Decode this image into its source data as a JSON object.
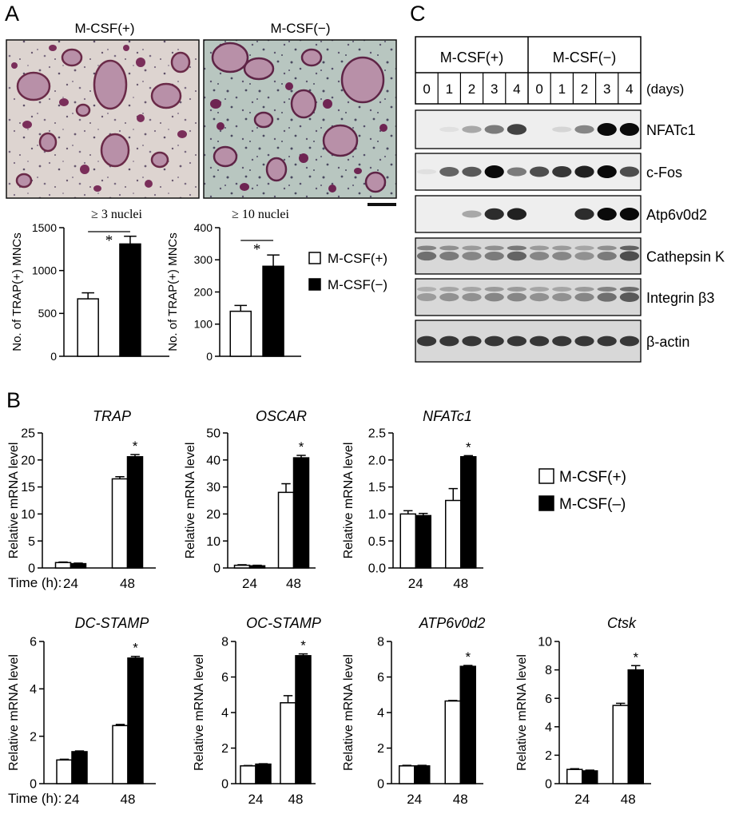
{
  "panels": {
    "A": "A",
    "B": "B",
    "C": "C"
  },
  "micro": {
    "left_label": "M-CSF(+)",
    "right_label": "M-CSF(−)"
  },
  "legend": {
    "open": "M-CSF(+)",
    "filled_a": "M-CSF(−)",
    "filled_b": "M-CSF(–)"
  },
  "blot": {
    "groups": [
      "M-CSF(+)",
      "M-CSF(−)"
    ],
    "days": [
      "0",
      "1",
      "2",
      "3",
      "4",
      "0",
      "1",
      "2",
      "3",
      "4"
    ],
    "days_unit": "(days)",
    "rows": [
      {
        "label": "NFATc1",
        "intensity": [
          0.0,
          0.05,
          0.3,
          0.5,
          0.75,
          0.0,
          0.1,
          0.45,
          1.0,
          1.0
        ]
      },
      {
        "label": "c-Fos",
        "intensity": [
          0.05,
          0.6,
          0.65,
          1.0,
          0.5,
          0.7,
          0.8,
          0.9,
          1.0,
          0.7
        ]
      },
      {
        "label": "Atp6v0d2",
        "intensity": [
          0.0,
          0.0,
          0.3,
          0.85,
          0.9,
          0.0,
          0.0,
          0.85,
          1.0,
          1.0
        ]
      },
      {
        "label": "Cathepsin K",
        "intensity": [
          0.55,
          0.5,
          0.45,
          0.5,
          0.6,
          0.45,
          0.45,
          0.4,
          0.5,
          0.7
        ]
      },
      {
        "label": "Integrin β3",
        "intensity": [
          0.35,
          0.4,
          0.4,
          0.45,
          0.45,
          0.4,
          0.4,
          0.45,
          0.55,
          0.65
        ]
      },
      {
        "label": "β-actin",
        "intensity": [
          0.8,
          0.8,
          0.8,
          0.8,
          0.8,
          0.8,
          0.8,
          0.8,
          0.8,
          0.8
        ]
      }
    ]
  },
  "chart_data": [
    {
      "type": "bar",
      "id": "a1",
      "title": "≥ 3 nuclei",
      "ylabel": "No. of TRAP(+) MNCs",
      "ylim": [
        0,
        1500
      ],
      "yticks": [
        0,
        500,
        1000,
        1500
      ],
      "series": [
        {
          "name": "M-CSF(+)",
          "values": [
            670
          ],
          "errors": [
            70
          ]
        },
        {
          "name": "M-CSF(−)",
          "values": [
            1310
          ],
          "errors": [
            90
          ]
        }
      ],
      "annotations": [
        "*"
      ]
    },
    {
      "type": "bar",
      "id": "a2",
      "title": "≥ 10 nuclei",
      "ylabel": "No. of TRAP(+) MNCs",
      "ylim": [
        0,
        400
      ],
      "yticks": [
        0,
        100,
        200,
        300,
        400
      ],
      "series": [
        {
          "name": "M-CSF(+)",
          "values": [
            140
          ],
          "errors": [
            18
          ]
        },
        {
          "name": "M-CSF(−)",
          "values": [
            280
          ],
          "errors": [
            35
          ]
        }
      ],
      "annotations": [
        "*"
      ]
    },
    {
      "type": "bar",
      "id": "trap",
      "title": "TRAP",
      "ylabel": "Relative mRNA level",
      "xlabel": "Time (h):",
      "categories": [
        "24",
        "48"
      ],
      "ylim": [
        0,
        25
      ],
      "yticks": [
        0,
        5,
        10,
        15,
        20,
        25
      ],
      "series": [
        {
          "name": "M-CSF(+)",
          "values": [
            1.0,
            16.5
          ],
          "errors": [
            0.1,
            0.4
          ]
        },
        {
          "name": "M-CSF(–)",
          "values": [
            0.8,
            20.6
          ],
          "errors": [
            0.1,
            0.4
          ]
        }
      ],
      "annotations": [
        "*"
      ]
    },
    {
      "type": "bar",
      "id": "oscar",
      "title": "OSCAR",
      "ylabel": "Relative mRNA level",
      "categories": [
        "24",
        "48"
      ],
      "ylim": [
        0,
        50
      ],
      "yticks": [
        0,
        10,
        20,
        30,
        40,
        50
      ],
      "series": [
        {
          "name": "M-CSF(+)",
          "values": [
            1.0,
            28.0
          ],
          "errors": [
            0.2,
            3.2
          ]
        },
        {
          "name": "M-CSF(–)",
          "values": [
            0.8,
            40.8
          ],
          "errors": [
            0.2,
            0.9
          ]
        }
      ],
      "annotations": [
        "*"
      ]
    },
    {
      "type": "bar",
      "id": "nfatc1",
      "title": "NFATc1",
      "ylabel": "Relative mRNA level",
      "categories": [
        "24",
        "48"
      ],
      "ylim": [
        0,
        2.5
      ],
      "yticks": [
        "0.0",
        "0.5",
        "1.0",
        "1.5",
        "2.0",
        "2.5"
      ],
      "series": [
        {
          "name": "M-CSF(+)",
          "values": [
            1.0,
            1.25
          ],
          "errors": [
            0.06,
            0.22
          ]
        },
        {
          "name": "M-CSF(–)",
          "values": [
            0.97,
            2.06
          ],
          "errors": [
            0.04,
            0.02
          ]
        }
      ],
      "annotations": [
        "*"
      ]
    },
    {
      "type": "bar",
      "id": "dcstamp",
      "title": "DC-STAMP",
      "ylabel": "Relative mRNA level",
      "xlabel": "Time (h):",
      "categories": [
        "24",
        "48"
      ],
      "ylim": [
        0,
        6
      ],
      "yticks": [
        0,
        2,
        4,
        6
      ],
      "series": [
        {
          "name": "M-CSF(+)",
          "values": [
            1.0,
            2.45
          ],
          "errors": [
            0.03,
            0.05
          ]
        },
        {
          "name": "M-CSF(–)",
          "values": [
            1.35,
            5.3
          ],
          "errors": [
            0.03,
            0.07
          ]
        }
      ],
      "annotations": [
        "*"
      ]
    },
    {
      "type": "bar",
      "id": "ocstamp",
      "title": "OC-STAMP",
      "ylabel": "Relative mRNA level",
      "categories": [
        "24",
        "48"
      ],
      "ylim": [
        0,
        8
      ],
      "yticks": [
        0,
        2,
        4,
        6,
        8
      ],
      "series": [
        {
          "name": "M-CSF(+)",
          "values": [
            1.0,
            4.55
          ],
          "errors": [
            0.02,
            0.4
          ]
        },
        {
          "name": "M-CSF(–)",
          "values": [
            1.1,
            7.2
          ],
          "errors": [
            0.02,
            0.1
          ]
        }
      ],
      "annotations": [
        "*"
      ]
    },
    {
      "type": "bar",
      "id": "atp6v0d2",
      "title": "ATP6v0d2",
      "ylabel": "Relative mRNA level",
      "categories": [
        "24",
        "48"
      ],
      "ylim": [
        0,
        8
      ],
      "yticks": [
        0,
        2,
        4,
        6,
        8
      ],
      "series": [
        {
          "name": "M-CSF(+)",
          "values": [
            1.0,
            4.65
          ],
          "errors": [
            0.03,
            0.03
          ]
        },
        {
          "name": "M-CSF(–)",
          "values": [
            1.0,
            6.6
          ],
          "errors": [
            0.03,
            0.05
          ]
        }
      ],
      "annotations": [
        "*"
      ]
    },
    {
      "type": "bar",
      "id": "ctsk",
      "title": "Ctsk",
      "ylabel": "Relative mRNA level",
      "categories": [
        "24",
        "48"
      ],
      "ylim": [
        0,
        10
      ],
      "yticks": [
        0,
        2,
        4,
        6,
        8,
        10
      ],
      "series": [
        {
          "name": "M-CSF(+)",
          "values": [
            1.0,
            5.5
          ],
          "errors": [
            0.05,
            0.15
          ]
        },
        {
          "name": "M-CSF(–)",
          "values": [
            0.9,
            8.0
          ],
          "errors": [
            0.05,
            0.3
          ]
        }
      ],
      "annotations": [
        "*"
      ]
    }
  ]
}
